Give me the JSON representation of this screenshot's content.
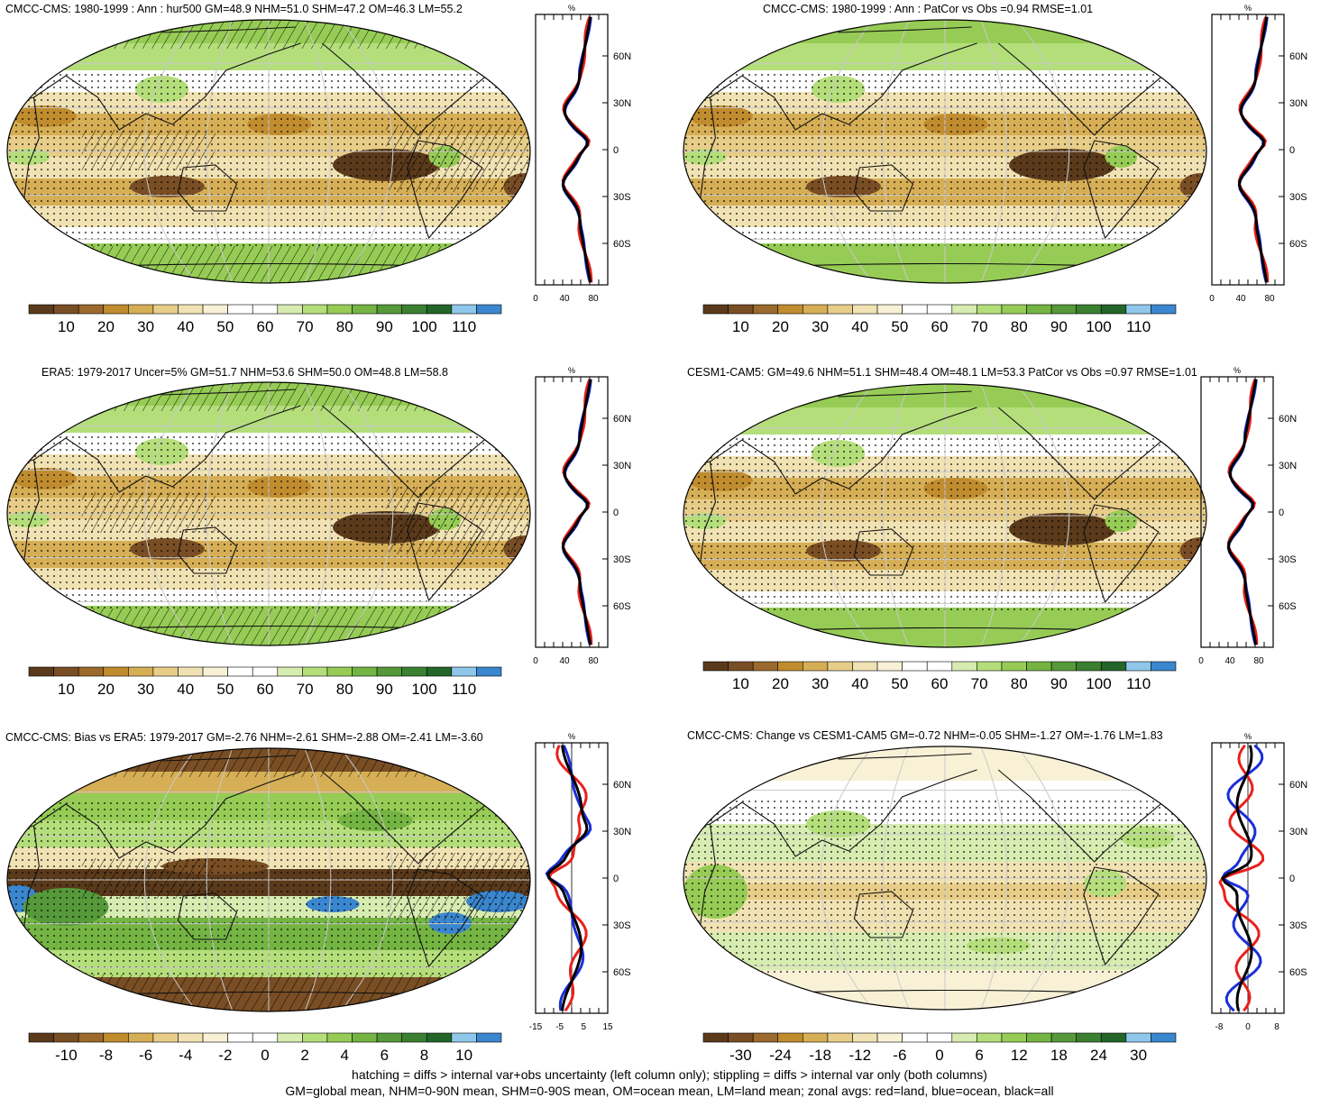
{
  "panels": [
    {
      "id": "p1",
      "title": "CMCC-CMS: 1980-1999 : Ann : hur500 GM=48.9 NHM=51.0 SHM=47.2 OM=46.3 LM=55.2",
      "map_style": "hur",
      "hatched": true,
      "zonal": {
        "unit": "%",
        "lat_ticks": [
          "60N",
          "30N",
          "0",
          "30S",
          "60S"
        ],
        "x_ticks": [
          "0",
          "40",
          "80"
        ],
        "x_range": [
          0,
          100
        ],
        "zero_line": false
      },
      "colorbar": {
        "labels": [
          "10",
          "20",
          "30",
          "40",
          "50",
          "60",
          "70",
          "80",
          "90",
          "100",
          "110"
        ],
        "scheme": "hur"
      }
    },
    {
      "id": "p2",
      "title": "CMCC-CMS: 1980-1999 : Ann : PatCor vs Obs =0.94 RMSE=1.01",
      "map_style": "hur",
      "hatched": false,
      "zonal": {
        "unit": "%",
        "lat_ticks": [
          "60N",
          "30N",
          "0",
          "30S",
          "60S"
        ],
        "x_ticks": [
          "0",
          "40",
          "80"
        ],
        "x_range": [
          0,
          100
        ],
        "zero_line": false
      },
      "colorbar": {
        "labels": [
          "10",
          "20",
          "30",
          "40",
          "50",
          "60",
          "70",
          "80",
          "90",
          "100",
          "110"
        ],
        "scheme": "hur"
      }
    },
    {
      "id": "p3",
      "title": "ERA5: 1979-2017 Uncer=5% GM=51.7 NHM=53.6 SHM=50.0 OM=48.8 LM=58.8",
      "map_style": "hur",
      "hatched": true,
      "zonal": {
        "unit": "%",
        "lat_ticks": [
          "60N",
          "30N",
          "0",
          "30S",
          "60S"
        ],
        "x_ticks": [
          "0",
          "40",
          "80"
        ],
        "x_range": [
          0,
          100
        ],
        "zero_line": false
      },
      "colorbar": {
        "labels": [
          "10",
          "20",
          "30",
          "40",
          "50",
          "60",
          "70",
          "80",
          "90",
          "100",
          "110"
        ],
        "scheme": "hur"
      }
    },
    {
      "id": "p4",
      "title": "CESM1-CAM5: GM=49.6 NHM=51.1 SHM=48.4 OM=48.1 LM=53.3 PatCor vs Obs =0.97 RMSE=1.01",
      "map_style": "hur",
      "hatched": false,
      "zonal": {
        "unit": "%",
        "lat_ticks": [
          "60N",
          "30N",
          "0",
          "30S",
          "60S"
        ],
        "x_ticks": [
          "0",
          "40",
          "80"
        ],
        "x_range": [
          0,
          100
        ],
        "zero_line": false
      },
      "colorbar": {
        "labels": [
          "10",
          "20",
          "30",
          "40",
          "50",
          "60",
          "70",
          "80",
          "90",
          "100",
          "110"
        ],
        "scheme": "hur"
      }
    },
    {
      "id": "p5",
      "title": "CMCC-CMS: Bias vs ERA5: 1979-2017 GM=-2.76 NHM=-2.61 SHM=-2.88 OM=-2.41 LM=-3.60",
      "map_style": "bias",
      "hatched": true,
      "zonal": {
        "unit": "%",
        "lat_ticks": [
          "60N",
          "30N",
          "0",
          "30S",
          "60S"
        ],
        "x_ticks": [
          "-15",
          "-5",
          "5",
          "15"
        ],
        "x_range": [
          -15,
          15
        ],
        "zero_line": true
      },
      "colorbar": {
        "labels": [
          "-10",
          "-8",
          "-6",
          "-4",
          "-2",
          "0",
          "2",
          "4",
          "6",
          "8",
          "10"
        ],
        "scheme": "bias"
      }
    },
    {
      "id": "p6",
      "title": "CMCC-CMS: Change vs CESM1-CAM5 GM=-0.72 NHM=-0.05 SHM=-1.27 OM=-1.76 LM=1.83",
      "map_style": "change",
      "hatched": false,
      "zonal": {
        "unit": "%",
        "lat_ticks": [
          "60N",
          "30N",
          "0",
          "30S",
          "60S"
        ],
        "x_ticks": [
          "-8",
          "0",
          "8"
        ],
        "x_range": [
          -10,
          10
        ],
        "zero_line": true
      },
      "colorbar": {
        "labels": [
          "-30",
          "-24",
          "-18",
          "-12",
          "-6",
          "0",
          "6",
          "12",
          "18",
          "24",
          "30"
        ],
        "scheme": "change"
      }
    }
  ],
  "colors": {
    "hur": [
      "#5a3a1b",
      "#7a4e24",
      "#9b6a2c",
      "#c08c2e",
      "#d6ae55",
      "#e7cd88",
      "#f1e2b3",
      "#f8f1d6",
      "#ffffff",
      "#ffffff",
      "#d7ecb0",
      "#b4de7a",
      "#96cc55",
      "#74b443",
      "#55993a",
      "#3b7f30",
      "#24652a",
      "#8fc7ea",
      "#3a86cf"
    ],
    "zonal_lines": {
      "land": "#e8201d",
      "ocean": "#1b2fd6",
      "all": "#000000"
    }
  },
  "footer": {
    "line1": "hatching = diffs > internal var+obs uncertainty (left column only); stippling = diffs > internal var only (both columns)",
    "line2": "GM=global mean, NHM=0-90N mean, SHM=0-90S mean, OM=ocean mean, LM=land mean; zonal avgs: red=land, blue=ocean, black=all"
  }
}
